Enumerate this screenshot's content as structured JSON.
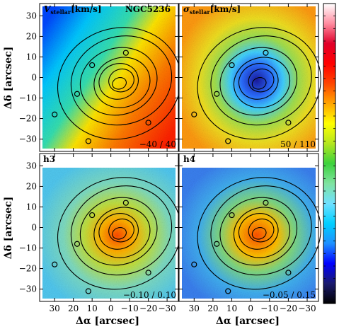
{
  "chart_data": {
    "type": "heatmap",
    "object": "NGC5236",
    "xlabel": "Δα [arcsec]",
    "ylabel": "Δδ [arcsec]",
    "x_ticks": [
      30,
      20,
      10,
      0,
      -10,
      -20,
      -30
    ],
    "x_tick_labels": [
      "30",
      "20",
      "10",
      "0",
      "−10",
      "−20",
      "−30"
    ],
    "y_ticks": [
      30,
      20,
      10,
      0,
      -10,
      -20,
      -30
    ],
    "y_tick_labels": [
      "30",
      "20",
      "10",
      "0",
      "−10",
      "−20",
      "−30"
    ],
    "xlim": [
      38,
      -36
    ],
    "ylim": [
      -36,
      36
    ],
    "colorbar": "rainbow (black → blue → cyan → green → yellow → red → white)",
    "panels": [
      {
        "id": "v",
        "title_main": "V",
        "title_sub": "stellar",
        "title_unit": "[km/s]",
        "title_symbol": "",
        "object_label": "NGC5236",
        "range_label": "−40 / 40",
        "vmin": -40,
        "vmax": 40
      },
      {
        "id": "sigma",
        "title_main": "",
        "title_sub": "stellar",
        "title_unit": "[km/s]",
        "title_symbol": "σ",
        "object_label": "",
        "range_label": "50 / 110",
        "vmin": 50,
        "vmax": 110
      },
      {
        "id": "h3",
        "title_main": "h3",
        "title_sub": "",
        "title_unit": "",
        "title_symbol": "",
        "object_label": "",
        "range_label": "−0.10 / 0.10",
        "vmin": -0.1,
        "vmax": 0.1
      },
      {
        "id": "h4",
        "title_main": "h4",
        "title_sub": "",
        "title_unit": "",
        "title_symbol": "",
        "object_label": "",
        "range_label": "−0.05 / 0.15",
        "vmin": -0.05,
        "vmax": 0.15
      }
    ]
  }
}
